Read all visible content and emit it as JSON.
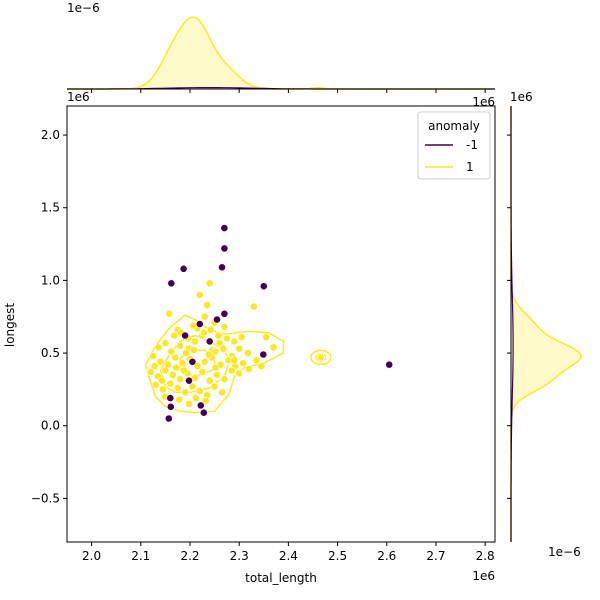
{
  "colors": {
    "anomaly_neg": "#440154",
    "anomaly_pos": "#fde725",
    "fill_pos": "#fde725"
  },
  "chart_data": {
    "type": "scatter",
    "title": "",
    "xlabel": "total_length",
    "ylabel": "longest",
    "x_offset_label": "1e6",
    "y_offset_label": "1e6",
    "top_marginal_offset_label": "1e−6",
    "right_marginal_offset_label": "1e−6",
    "xlim": [
      1.95,
      2.82
    ],
    "ylim": [
      -0.8,
      2.2
    ],
    "x_ticks": [
      "2.0",
      "2.1",
      "2.2",
      "2.3",
      "2.4",
      "2.5",
      "2.6",
      "2.7",
      "2.8"
    ],
    "y_ticks": [
      "−0.5",
      "0.0",
      "0.5",
      "1.0",
      "1.5",
      "2.0"
    ],
    "x_tick_values": [
      2.0,
      2.1,
      2.2,
      2.3,
      2.4,
      2.5,
      2.6,
      2.7,
      2.8
    ],
    "y_tick_values": [
      -0.5,
      0.0,
      0.5,
      1.0,
      1.5,
      2.0
    ],
    "grid": false,
    "legend": {
      "title": "anomaly",
      "placement": "top-right",
      "entries": [
        "-1",
        "1"
      ]
    },
    "series": [
      {
        "name": "-1",
        "points": [
          [
            2.162,
            0.98
          ],
          [
            2.187,
            1.08
          ],
          [
            2.265,
            1.09
          ],
          [
            2.27,
            1.36
          ],
          [
            2.27,
            1.22
          ],
          [
            2.35,
            0.96
          ],
          [
            2.27,
            0.77
          ],
          [
            2.349,
            0.49
          ],
          [
            2.605,
            0.42
          ],
          [
            2.16,
            0.19
          ],
          [
            2.161,
            0.13
          ],
          [
            2.157,
            0.05
          ],
          [
            2.222,
            0.14
          ],
          [
            2.228,
            0.09
          ],
          [
            2.19,
            0.62
          ],
          [
            2.22,
            0.7
          ],
          [
            2.255,
            0.73
          ],
          [
            2.205,
            0.44
          ],
          [
            2.24,
            0.58
          ],
          [
            2.198,
            0.31
          ]
        ]
      },
      {
        "name": "1",
        "points": [
          [
            2.158,
            0.77
          ],
          [
            2.22,
            0.9
          ],
          [
            2.235,
            0.83
          ],
          [
            2.24,
            0.98
          ],
          [
            2.33,
            0.82
          ],
          [
            2.175,
            0.66
          ],
          [
            2.23,
            0.75
          ],
          [
            2.25,
            0.71
          ],
          [
            2.196,
            0.6
          ],
          [
            2.215,
            0.67
          ],
          [
            2.136,
            0.54
          ],
          [
            2.15,
            0.57
          ],
          [
            2.162,
            0.51
          ],
          [
            2.18,
            0.55
          ],
          [
            2.198,
            0.53
          ],
          [
            2.21,
            0.58
          ],
          [
            2.225,
            0.62
          ],
          [
            2.245,
            0.52
          ],
          [
            2.26,
            0.57
          ],
          [
            2.275,
            0.6
          ],
          [
            2.285,
            0.48
          ],
          [
            2.3,
            0.53
          ],
          [
            2.318,
            0.5
          ],
          [
            2.335,
            0.45
          ],
          [
            2.355,
            0.61
          ],
          [
            2.37,
            0.54
          ],
          [
            2.125,
            0.48
          ],
          [
            2.14,
            0.44
          ],
          [
            2.155,
            0.42
          ],
          [
            2.17,
            0.47
          ],
          [
            2.185,
            0.43
          ],
          [
            2.2,
            0.46
          ],
          [
            2.215,
            0.41
          ],
          [
            2.23,
            0.44
          ],
          [
            2.245,
            0.47
          ],
          [
            2.262,
            0.42
          ],
          [
            2.278,
            0.45
          ],
          [
            2.292,
            0.41
          ],
          [
            2.308,
            0.43
          ],
          [
            2.32,
            0.39
          ],
          [
            2.12,
            0.37
          ],
          [
            2.135,
            0.34
          ],
          [
            2.15,
            0.38
          ],
          [
            2.165,
            0.35
          ],
          [
            2.18,
            0.32
          ],
          [
            2.195,
            0.36
          ],
          [
            2.21,
            0.33
          ],
          [
            2.225,
            0.37
          ],
          [
            2.24,
            0.31
          ],
          [
            2.255,
            0.35
          ],
          [
            2.27,
            0.32
          ],
          [
            2.285,
            0.38
          ],
          [
            2.3,
            0.36
          ],
          [
            2.13,
            0.28
          ],
          [
            2.145,
            0.25
          ],
          [
            2.16,
            0.29
          ],
          [
            2.175,
            0.26
          ],
          [
            2.19,
            0.23
          ],
          [
            2.205,
            0.27
          ],
          [
            2.22,
            0.24
          ],
          [
            2.235,
            0.21
          ],
          [
            2.25,
            0.27
          ],
          [
            2.265,
            0.23
          ],
          [
            2.168,
            0.62
          ],
          [
            2.182,
            0.64
          ],
          [
            2.207,
            0.69
          ],
          [
            2.228,
            0.64
          ],
          [
            2.242,
            0.66
          ],
          [
            2.258,
            0.62
          ],
          [
            2.27,
            0.68
          ],
          [
            2.29,
            0.58
          ],
          [
            2.305,
            0.61
          ],
          [
            2.192,
            0.5
          ],
          [
            2.208,
            0.52
          ],
          [
            2.238,
            0.49
          ],
          [
            2.252,
            0.51
          ],
          [
            2.268,
            0.53
          ],
          [
            2.172,
            0.4
          ],
          [
            2.188,
            0.38
          ],
          [
            2.252,
            0.4
          ],
          [
            2.466,
            0.47
          ],
          [
            2.143,
            0.31
          ],
          [
            2.128,
            0.41
          ],
          [
            2.345,
            0.41
          ],
          [
            2.212,
            0.19
          ],
          [
            2.198,
            0.15
          ],
          [
            2.232,
            0.17
          ],
          [
            2.178,
            0.18
          ],
          [
            2.15,
            0.2
          ],
          [
            2.29,
            0.45
          ]
        ]
      }
    ]
  }
}
